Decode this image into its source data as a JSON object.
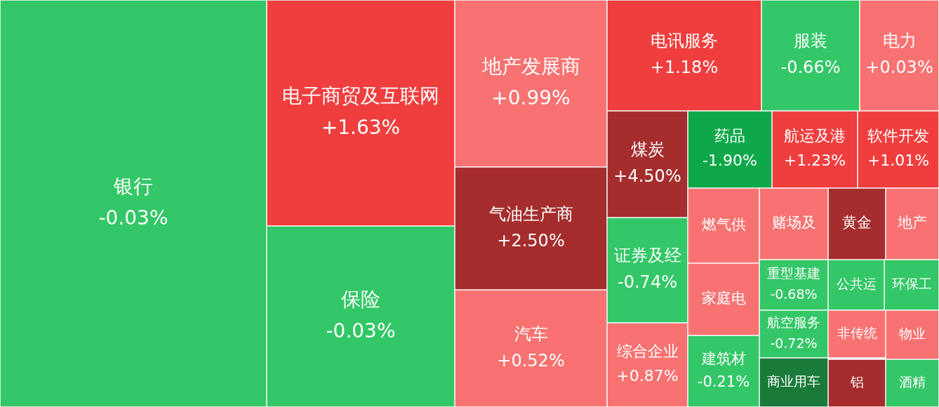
{
  "chart_data": {
    "type": "other",
    "categories": [
      "银行",
      "电子商贸及互联网",
      "保险",
      "地产发展商",
      "气油生产商",
      "汽车",
      "电讯服务",
      "服装",
      "电力",
      "煤炭",
      "药品",
      "航运及港",
      "软件开发",
      "证券及经",
      "综合企业",
      "燃气供",
      "家庭电",
      "建筑材",
      "赌场及",
      "黄金",
      "地产",
      "重型基建",
      "航空服务",
      "商业用车",
      "公共运",
      "环保工",
      "非传统",
      "物业",
      "铝",
      "酒精"
    ],
    "values": [
      -0.03,
      1.63,
      -0.03,
      0.99,
      2.5,
      0.52,
      1.18,
      -0.66,
      0.03,
      4.5,
      -1.9,
      1.23,
      1.01,
      -0.74,
      0.87,
      null,
      null,
      -0.21,
      null,
      null,
      null,
      -0.68,
      -0.72,
      null,
      null,
      null,
      null,
      null,
      null,
      null
    ],
    "value_labels": [
      "-0.03%",
      "+1.63%",
      "-0.03%",
      "+0.99%",
      "+2.50%",
      "+0.52%",
      "+1.18%",
      "-0.66%",
      "+0.03%",
      "+4.50%",
      "-1.90%",
      "+1.23%",
      "+1.01%",
      "-0.74%",
      "+0.87%",
      null,
      null,
      "-0.21%",
      null,
      null,
      null,
      "-0.68%",
      "-0.72%",
      null,
      null,
      null,
      null,
      null,
      null,
      null
    ],
    "colors": [
      "#33c767",
      "#f03e3e",
      "#33c767",
      "#f87272",
      "#a52d2d",
      "#f87272",
      "#f03e3e",
      "#33c767",
      "#f87272",
      "#a52d2d",
      "#0ea84a",
      "#f03e3e",
      "#f03e3e",
      "#33c767",
      "#f87272",
      "#f87272",
      "#f87272",
      "#33c767",
      "#f87272",
      "#a52d2d",
      "#f87272",
      "#33c767",
      "#33c767",
      "#1a7a3a",
      "#33c767",
      "#33c767",
      "#f87272",
      "#f87272",
      "#a52d2d",
      "#33c767"
    ]
  }
}
